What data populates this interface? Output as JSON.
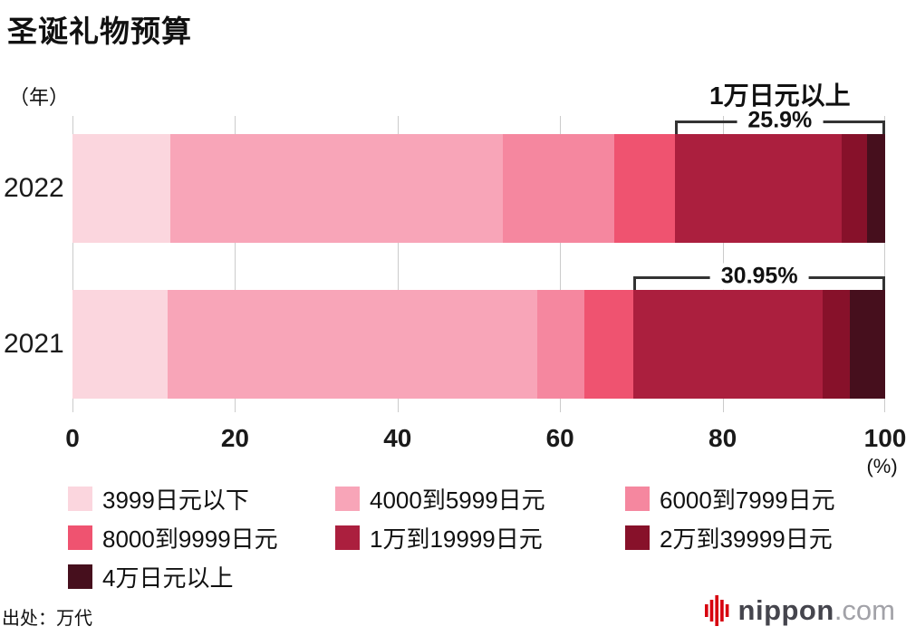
{
  "page": {
    "title": "圣诞礼物预算",
    "source": "出处：万代"
  },
  "logo": {
    "name": "nippon",
    "suffix": ".com",
    "icon_color": "#d7000f"
  },
  "chart_data": {
    "type": "bar",
    "orientation": "horizontal",
    "stacked": true,
    "y_axis_unit": "（年）",
    "x_axis_unit": "(%)",
    "categories": [
      "2022",
      "2021"
    ],
    "x_ticks": [
      0,
      20,
      40,
      60,
      80,
      100
    ],
    "xlim": [
      0,
      100
    ],
    "grid": true,
    "legend_position": "bottom",
    "series": [
      {
        "name": "3999日元以下",
        "color": "#fbd6de",
        "values": [
          12.0,
          11.7
        ]
      },
      {
        "name": "4000到5999日元",
        "color": "#f8a5b8",
        "values": [
          41.0,
          45.5
        ]
      },
      {
        "name": "6000到7999日元",
        "color": "#f5879f",
        "values": [
          13.7,
          5.8
        ]
      },
      {
        "name": "8000到9999日元",
        "color": "#ef5370",
        "values": [
          7.4,
          6.05
        ]
      },
      {
        "name": "1万到19999日元",
        "color": "#ab1f3e",
        "values": [
          20.6,
          23.25
        ]
      },
      {
        "name": "2万到39999日元",
        "color": "#87112a",
        "values": [
          3.1,
          3.35
        ]
      },
      {
        "name": "4万日元以上",
        "color": "#460f1d",
        "values": [
          2.2,
          4.35
        ]
      }
    ],
    "annotations": [
      {
        "bar": "2022",
        "label": "1万日元以上",
        "value_label": "25.9%",
        "from": 74.1,
        "to": 100
      },
      {
        "bar": "2021",
        "label": "",
        "value_label": "30.95%",
        "from": 69.05,
        "to": 100
      }
    ]
  }
}
